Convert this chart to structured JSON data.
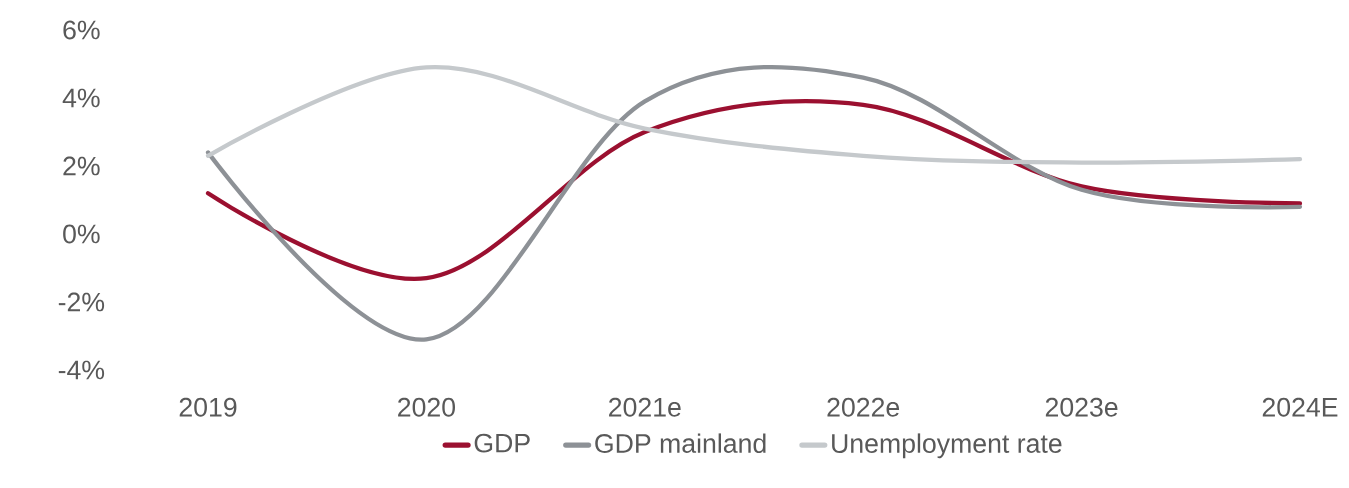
{
  "chart_data": {
    "type": "line",
    "categories": [
      "2019",
      "2020",
      "2021e",
      "2022e",
      "2023e",
      "2024E"
    ],
    "series": [
      {
        "name": "GDP",
        "color": "#9b1030",
        "values": [
          1.2,
          -1.3,
          3.0,
          3.8,
          1.4,
          0.9
        ]
      },
      {
        "name": "GDP mainland",
        "color": "#8d9196",
        "values": [
          2.4,
          -3.1,
          3.9,
          4.6,
          1.3,
          0.8
        ]
      },
      {
        "name": "Unemployment rate",
        "color": "#c5c9cc",
        "values": [
          2.3,
          4.9,
          3.1,
          2.3,
          2.1,
          2.2
        ]
      }
    ],
    "ylim": [
      -4,
      6
    ],
    "yticks": [
      {
        "value": -4,
        "label": "-4%"
      },
      {
        "value": -2,
        "label": "-2%"
      },
      {
        "value": 0,
        "label": "0%"
      },
      {
        "value": 2,
        "label": "2%"
      },
      {
        "value": 4,
        "label": "4%"
      },
      {
        "value": 6,
        "label": "6%"
      }
    ],
    "grid": false,
    "legend": "bottom",
    "marker": "none",
    "line_style": "solid"
  }
}
